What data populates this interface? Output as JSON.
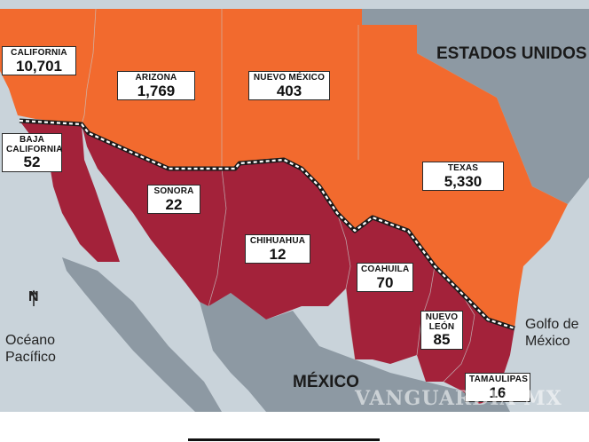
{
  "regions": {
    "us": {
      "name": "ESTADOS UNIDOS"
    },
    "mx": {
      "name": "MÉXICO"
    }
  },
  "water": {
    "pacific": "Océano Pacífico",
    "gulf": "Golfo de México"
  },
  "compass": {
    "north_label": "N"
  },
  "watermark": {
    "text": "VANGUARDIA MX"
  },
  "states": [
    {
      "name": "CALIFORNIA",
      "value": "10,701",
      "country": "us"
    },
    {
      "name": "ARIZONA",
      "value": "1,769",
      "country": "us"
    },
    {
      "name": "NUEVO MÉXICO",
      "value": "403",
      "country": "us"
    },
    {
      "name": "TEXAS",
      "value": "5,330",
      "country": "us"
    },
    {
      "name": "BAJA CALIFORNIA",
      "value": "52",
      "country": "mx"
    },
    {
      "name": "SONORA",
      "value": "22",
      "country": "mx"
    },
    {
      "name": "CHIHUAHUA",
      "value": "12",
      "country": "mx"
    },
    {
      "name": "COAHUILA",
      "value": "70",
      "country": "mx"
    },
    {
      "name": "NUEVO LEÓN",
      "value": "85",
      "country": "mx"
    },
    {
      "name": "TAMAULIPAS",
      "value": "16",
      "country": "mx"
    }
  ],
  "colors": {
    "us_states": "#f26a2e",
    "mx_states": "#a3223a",
    "other_land": "#8d99a3",
    "water": "#c9d3da",
    "border": "#1a1a1a"
  }
}
